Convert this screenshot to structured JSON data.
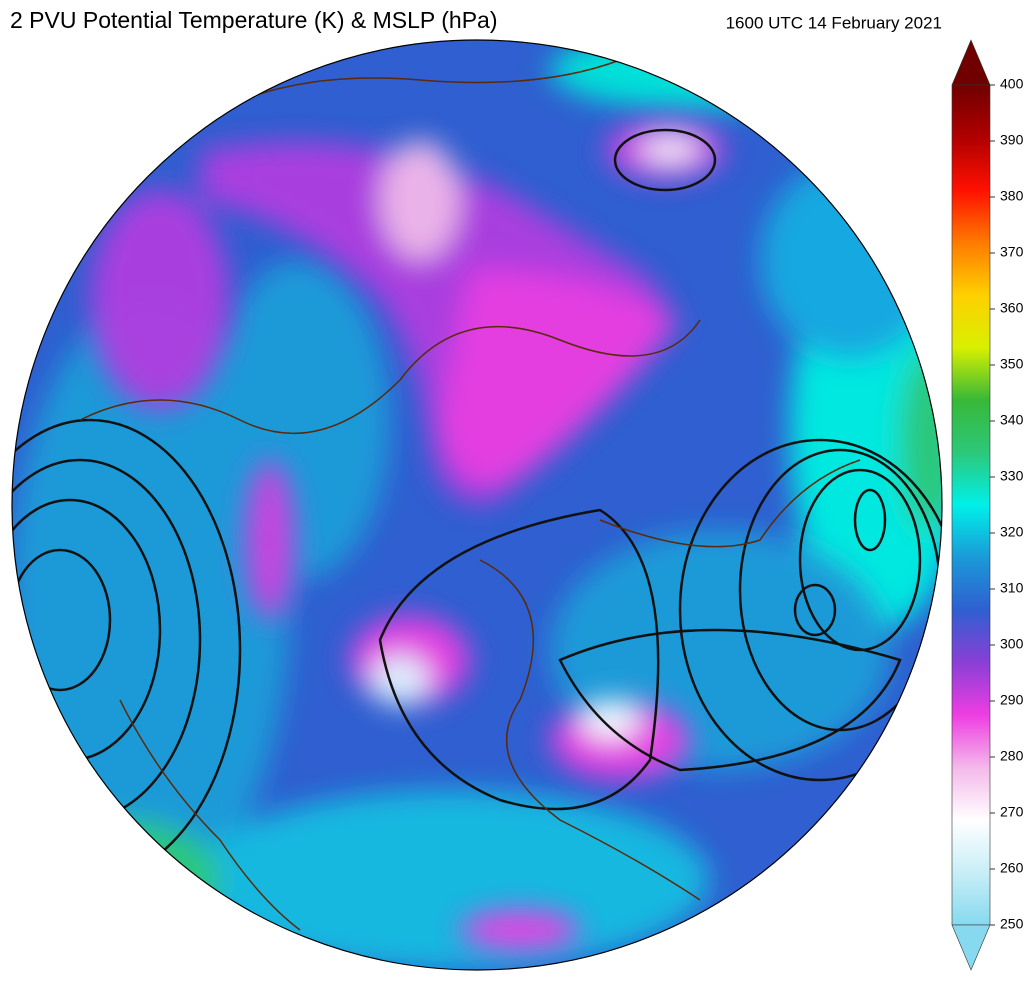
{
  "header": {
    "title": "2 PVU Potential Temperature (K) & MSLP (hPa)",
    "valid_time": "1600 UTC 14 February 2021"
  },
  "colorbar": {
    "lim": [
      250,
      400
    ],
    "ticks": [
      250,
      260,
      270,
      280,
      290,
      300,
      310,
      320,
      330,
      340,
      350,
      360,
      370,
      380,
      390,
      400
    ],
    "colors": [
      "#86d9ee",
      "#c8eef7",
      "#ffffff",
      "#f4b8ea",
      "#ee3ee2",
      "#8a3fd6",
      "#2f5fd0",
      "#1a9ad8",
      "#00f0e8",
      "#2cc87a",
      "#38b838",
      "#d8f000",
      "#ffd000",
      "#ff7a00",
      "#ff1000",
      "#b00000",
      "#700000"
    ],
    "extend_low_color": "#86d9ee",
    "extend_high_color": "#700000"
  }
}
